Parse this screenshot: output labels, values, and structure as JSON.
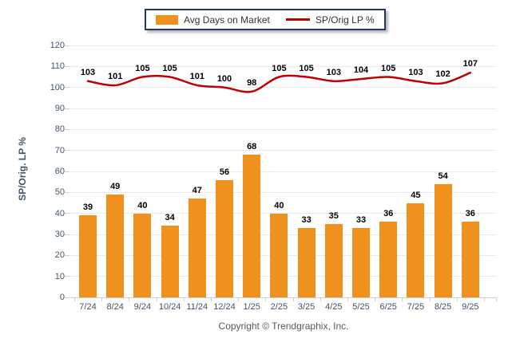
{
  "legend": {
    "border_color": "#1F3864",
    "items": [
      {
        "label": "Avg Days on Market",
        "type": "bar"
      },
      {
        "label": "SP/Orig LP %",
        "type": "line"
      }
    ]
  },
  "footer": {
    "text": "Copyright © Trendgraphix, Inc."
  },
  "chart_data": {
    "type": "bar",
    "title": "",
    "xlabel": "",
    "ylabel": "SP/Orig. LP %",
    "ylim": [
      0,
      120
    ],
    "yticks": [
      0,
      10,
      20,
      30,
      40,
      50,
      60,
      70,
      80,
      90,
      100,
      110,
      120
    ],
    "grid": true,
    "legend_position": "top",
    "categories": [
      "7/24",
      "8/24",
      "9/24",
      "10/24",
      "11/24",
      "12/24",
      "1/25",
      "2/25",
      "3/25",
      "4/25",
      "5/25",
      "6/25",
      "7/25",
      "8/25",
      "9/25"
    ],
    "series": [
      {
        "name": "Avg Days on Market",
        "type": "bar",
        "color": "#F0911E",
        "values": [
          39,
          49,
          40,
          34,
          47,
          56,
          68,
          40,
          33,
          35,
          33,
          36,
          45,
          54,
          36
        ]
      },
      {
        "name": "SP/Orig LP %",
        "type": "line",
        "color": "#C00000",
        "values": [
          103,
          101,
          105,
          105,
          101,
          100,
          98,
          105,
          105,
          103,
          104,
          105,
          103,
          102,
          107
        ]
      }
    ]
  }
}
